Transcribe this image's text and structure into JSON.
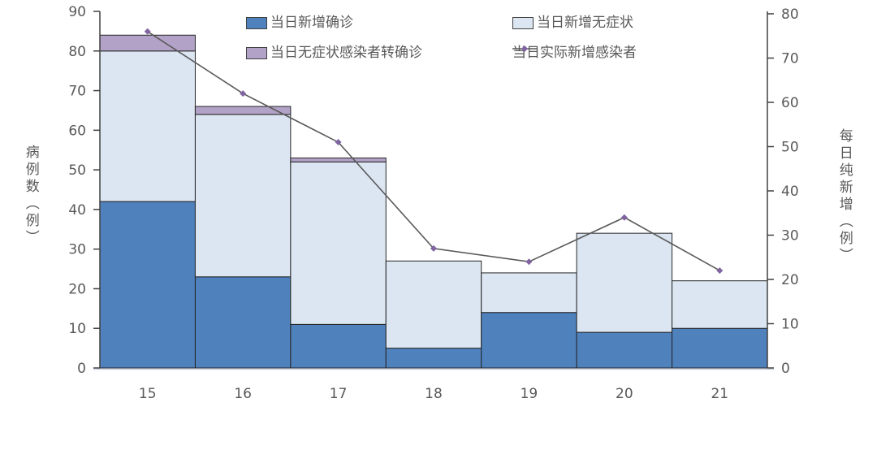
{
  "chart_data": {
    "type": "bar",
    "subtype": "stacked-bars-with-line-overlay",
    "categories": [
      "15",
      "16",
      "17",
      "18",
      "19",
      "20",
      "21"
    ],
    "series": [
      {
        "name": "当日新增确诊",
        "kind": "bar",
        "color": "#4F81BD",
        "values": [
          42,
          23,
          11,
          5,
          14,
          9,
          10
        ]
      },
      {
        "name": "当日新增无症状",
        "kind": "bar",
        "color": "#DCE6F2",
        "values": [
          38,
          41,
          41,
          22,
          10,
          25,
          12
        ]
      },
      {
        "name": "当日无症状感染者转确诊",
        "kind": "bar",
        "color": "#B3A2C7",
        "values": [
          4,
          2,
          1,
          0,
          0,
          0,
          0
        ]
      },
      {
        "name": "当日实际新增感染者",
        "kind": "line",
        "axis": "right",
        "color": "#595959",
        "marker_color": "#8064A2",
        "values": [
          76,
          62,
          51,
          27,
          24,
          34,
          22
        ]
      }
    ],
    "stack_totals": [
      84,
      66,
      53,
      27,
      24,
      34,
      22
    ],
    "left_axis": {
      "title": "病例数（例）",
      "min": 0,
      "max": 90,
      "step": 10,
      "ticks": [
        "0",
        "10",
        "20",
        "30",
        "40",
        "50",
        "60",
        "70",
        "80",
        "90"
      ]
    },
    "right_axis": {
      "title": "每日纯新增（例）",
      "min": 0,
      "max": 80,
      "step": 10,
      "ticks": [
        "0",
        "10",
        "20",
        "30",
        "40",
        "50",
        "60",
        "70",
        "80"
      ]
    },
    "grid": false,
    "legend_position": "top-center",
    "bar_border_color": "#262626",
    "axis_line_color": "#404040",
    "baseline_color": "#C9D2E0",
    "text_color": "#595959",
    "background_color": "#ffffff"
  }
}
